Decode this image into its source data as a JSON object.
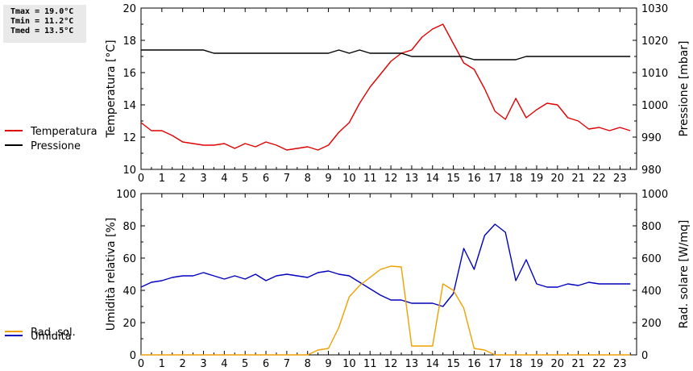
{
  "stats": {
    "tmax": "Tmax = 19.0°C",
    "tmin": "Tmin = 11.2°C",
    "tmed": "Tmed = 13.5°C"
  },
  "chart_data": [
    {
      "type": "line",
      "x_ticks": [
        "0",
        "1",
        "2",
        "3",
        "4",
        "5",
        "6",
        "7",
        "8",
        "9",
        "10",
        "11",
        "12",
        "13",
        "14",
        "15",
        "16",
        "17",
        "18",
        "19",
        "20",
        "21",
        "22",
        "23"
      ],
      "xlim": [
        0,
        23.8
      ],
      "ylabel": "Temperatura [°C]",
      "ylim": [
        10,
        20
      ],
      "y_ticks": [
        "10",
        "12",
        "14",
        "16",
        "18",
        "20"
      ],
      "y2label": "Pressione [mbar]",
      "y2lim": [
        980,
        1030
      ],
      "y2_ticks": [
        "980",
        "990",
        "1000",
        "1010",
        "1020",
        "1030"
      ],
      "grid": false,
      "legend_position": "left",
      "series": [
        {
          "name": "Temperatura",
          "axis": "left",
          "color": "#e00000",
          "x": [
            0,
            0.5,
            1,
            1.5,
            2,
            2.5,
            3,
            3.5,
            4,
            4.5,
            5,
            5.5,
            6,
            6.5,
            7,
            7.5,
            8,
            8.5,
            9,
            9.5,
            10,
            10.5,
            11,
            11.5,
            12,
            12.5,
            13,
            13.5,
            14,
            14.5,
            15,
            15.5,
            16,
            16.5,
            17,
            17.5,
            18,
            18.5,
            19,
            19.5,
            20,
            20.5,
            21,
            21.5,
            22,
            22.5,
            23,
            23.5
          ],
          "values": [
            12.9,
            12.4,
            12.4,
            12.1,
            11.7,
            11.6,
            11.5,
            11.5,
            11.6,
            11.3,
            11.6,
            11.4,
            11.7,
            11.5,
            11.2,
            11.3,
            11.4,
            11.2,
            11.5,
            12.3,
            12.9,
            14.1,
            15.1,
            15.9,
            16.7,
            17.2,
            17.4,
            18.2,
            18.7,
            19.0,
            17.8,
            16.6,
            16.2,
            15.0,
            13.6,
            13.1,
            14.4,
            13.2,
            13.7,
            14.1,
            14.0,
            13.2,
            13.0,
            12.5,
            12.6,
            12.4,
            12.6,
            12.4
          ]
        },
        {
          "name": "Pressione",
          "axis": "right",
          "color": "#000000",
          "x": [
            0,
            0.5,
            1,
            1.5,
            2,
            2.5,
            3,
            3.5,
            4,
            4.5,
            5,
            5.5,
            6,
            6.5,
            7,
            7.5,
            8,
            8.5,
            9,
            9.5,
            10,
            10.5,
            11,
            11.5,
            12,
            12.5,
            13,
            13.5,
            14,
            14.5,
            15,
            15.5,
            16,
            16.5,
            17,
            17.5,
            18,
            18.5,
            19,
            19.5,
            20,
            20.5,
            21,
            21.5,
            22,
            22.5,
            23,
            23.5
          ],
          "values": [
            1017,
            1017,
            1017,
            1017,
            1017,
            1017,
            1017,
            1016,
            1016,
            1016,
            1016,
            1016,
            1016,
            1016,
            1016,
            1016,
            1016,
            1016,
            1016,
            1017,
            1016,
            1017,
            1016,
            1016,
            1016,
            1016,
            1015,
            1015,
            1015,
            1015,
            1015,
            1015,
            1014,
            1014,
            1014,
            1014,
            1014,
            1015,
            1015,
            1015,
            1015,
            1015,
            1015,
            1015,
            1015,
            1015,
            1015,
            1015
          ]
        }
      ]
    },
    {
      "type": "line",
      "x_ticks": [
        "0",
        "1",
        "2",
        "3",
        "4",
        "5",
        "6",
        "7",
        "8",
        "9",
        "10",
        "11",
        "12",
        "13",
        "14",
        "15",
        "16",
        "17",
        "18",
        "19",
        "20",
        "21",
        "22",
        "23"
      ],
      "xlim": [
        0,
        23.8
      ],
      "ylabel": "Umidità relativa [%]",
      "ylim": [
        0,
        100
      ],
      "y_ticks": [
        "0",
        "20",
        "40",
        "60",
        "80",
        "100"
      ],
      "y2label": "Rad. solare [W/mq]",
      "y2lim": [
        0,
        1000
      ],
      "y2_ticks": [
        "0",
        "200",
        "400",
        "600",
        "800",
        "1000"
      ],
      "grid": false,
      "legend_position": "left",
      "series": [
        {
          "name": "Umidità",
          "axis": "left",
          "color": "#0000c0",
          "x": [
            0,
            0.5,
            1,
            1.5,
            2,
            2.5,
            3,
            3.5,
            4,
            4.5,
            5,
            5.5,
            6,
            6.5,
            7,
            7.5,
            8,
            8.5,
            9,
            9.5,
            10,
            10.5,
            11,
            11.5,
            12,
            12.5,
            13,
            13.5,
            14,
            14.5,
            15,
            15.5,
            16,
            16.5,
            17,
            17.5,
            18,
            18.5,
            19,
            19.5,
            20,
            20.5,
            21,
            21.5,
            22,
            22.5,
            23,
            23.5
          ],
          "values": [
            42,
            45,
            46,
            48,
            49,
            49,
            51,
            49,
            47,
            49,
            47,
            50,
            46,
            49,
            50,
            49,
            48,
            51,
            52,
            50,
            49,
            45,
            41,
            37,
            34,
            34,
            32,
            32,
            32,
            30,
            38,
            66,
            53,
            74,
            81,
            76,
            46,
            59,
            44,
            42,
            42,
            44,
            43,
            45,
            44,
            44,
            44,
            44
          ]
        },
        {
          "name": "Rad. sol.",
          "axis": "right",
          "color": "#f0a000",
          "x": [
            0,
            0.5,
            1,
            1.5,
            2,
            2.5,
            3,
            3.5,
            4,
            4.5,
            5,
            5.5,
            6,
            6.5,
            7,
            7.5,
            8,
            8.5,
            9,
            9.5,
            10,
            10.5,
            11,
            11.5,
            12,
            12.5,
            13,
            13.5,
            14,
            14.5,
            15,
            15.5,
            16,
            16.5,
            17,
            17.5,
            18,
            18.5,
            19,
            19.5,
            20,
            20.5,
            21,
            21.5,
            22,
            22.5,
            23,
            23.5
          ],
          "values": [
            0,
            0,
            0,
            0,
            0,
            0,
            0,
            0,
            0,
            0,
            0,
            0,
            0,
            0,
            0,
            0,
            0,
            30,
            40,
            170,
            360,
            430,
            480,
            530,
            550,
            545,
            55,
            55,
            55,
            440,
            400,
            290,
            40,
            30,
            0,
            0,
            0,
            0,
            0,
            0,
            0,
            0,
            0,
            0,
            0,
            0,
            0,
            0
          ]
        }
      ]
    }
  ]
}
